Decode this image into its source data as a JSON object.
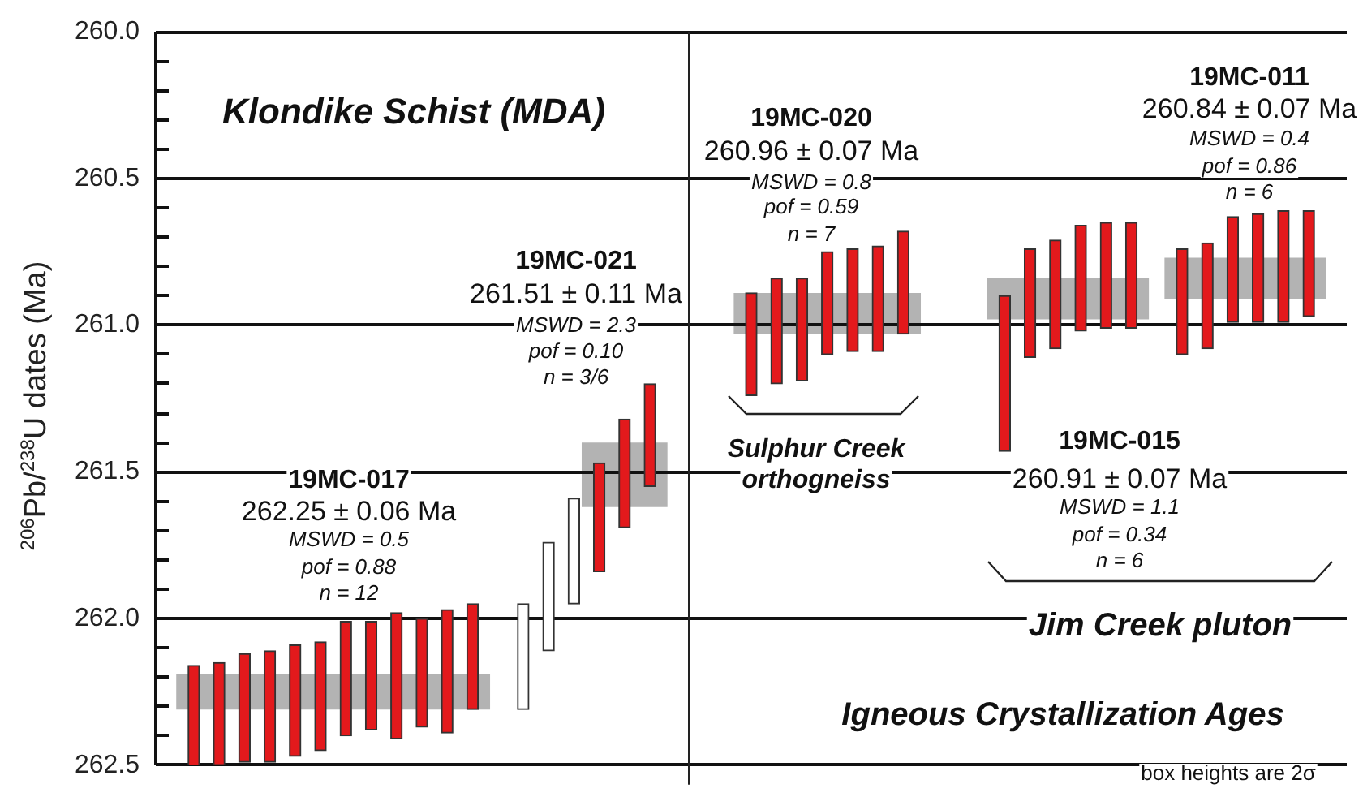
{
  "chart_data": {
    "type": "bar",
    "ylabel": "$^{206}$Pb/$^{238}$U dates (Ma)",
    "categories": [
      null,
      null,
      null,
      null,
      null,
      null,
      null,
      null,
      null,
      null,
      null,
      null,
      null,
      null,
      null,
      null,
      null,
      null,
      null,
      null,
      null,
      null,
      null,
      null,
      null,
      null,
      null,
      null,
      null,
      null,
      null,
      null,
      null,
      null,
      null,
      null,
      null,
      null,
      null,
      null,
      null,
      null,
      null,
      null,
      null,
      null,
      null
    ],
    "series": [
      {
        "type": "bar",
        "color": "#e3191c",
        "base": [
          null,
          262.16,
          262.15,
          262.12,
          262.11,
          262.09,
          262.08,
          262.01,
          262.01,
          261.98,
          262.0,
          261.97,
          261.95,
          null,
          null,
          null,
          null,
          261.47,
          261.32,
          261.2,
          null,
          null,
          null,
          260.89,
          260.84,
          260.84,
          260.75,
          260.74,
          260.73,
          260.68,
          null,
          null,
          null,
          260.9,
          260.74,
          260.71,
          260.66,
          260.65,
          260.65,
          null,
          260.74,
          260.72,
          260.63,
          260.62,
          260.61,
          260.61,
          null
        ],
        "values": [
          null,
          0.38,
          0.35,
          0.37,
          0.38,
          0.38,
          0.37,
          0.39,
          0.37,
          0.43,
          0.37,
          0.42,
          0.36,
          null,
          null,
          null,
          null,
          0.37,
          0.37,
          0.35,
          null,
          null,
          null,
          0.35,
          0.36,
          0.35,
          0.35,
          0.35,
          0.36,
          0.35,
          null,
          null,
          null,
          0.53,
          0.37,
          0.37,
          0.36,
          0.36,
          0.36,
          null,
          0.36,
          0.36,
          0.36,
          0.37,
          0.38,
          0.36,
          null
        ]
      },
      {
        "type": "bar",
        "color": "#ffffff",
        "base": [
          null,
          null,
          null,
          null,
          null,
          null,
          null,
          null,
          null,
          null,
          null,
          null,
          null,
          null,
          261.95,
          261.74,
          261.59,
          null,
          null,
          null,
          null,
          null,
          null,
          null,
          null,
          null,
          null,
          null,
          null,
          null,
          null,
          null,
          null,
          null,
          null,
          null,
          null,
          null,
          null,
          null,
          null,
          null,
          null,
          null,
          null,
          null,
          null
        ],
        "values": [
          null,
          null,
          null,
          null,
          null,
          null,
          null,
          null,
          null,
          null,
          null,
          null,
          null,
          null,
          0.36,
          0.37,
          0.36,
          null,
          null,
          null,
          null,
          null,
          null,
          null,
          null,
          null,
          null,
          null,
          null,
          null,
          null,
          null,
          null,
          null,
          null,
          null,
          null,
          null,
          null,
          null,
          null,
          null,
          null,
          null,
          null,
          null,
          null
        ]
      }
    ],
    "bands": [
      {
        "axis": "y",
        "from": 262.19,
        "to": 262.31,
        "color": "#b3b3b3"
      },
      {
        "axis": "y",
        "from": 261.4,
        "to": 261.62,
        "color": "#b3b3b3"
      },
      {
        "axis": "y",
        "from": 260.89,
        "to": 261.03,
        "color": "#b3b3b3"
      },
      {
        "axis": "y",
        "from": 260.84,
        "to": 260.98,
        "color": "#b3b3b3"
      },
      {
        "axis": "y",
        "from": 260.77,
        "to": 260.91,
        "color": "#b3b3b3"
      }
    ],
    "ylim": [
      262.5,
      260.0
    ],
    "yticks": [
      {
        "value": 260.0,
        "label": "260.0"
      },
      {
        "value": 260.1,
        "label": null
      },
      {
        "value": 260.2,
        "label": null
      },
      {
        "value": 260.3,
        "label": null
      },
      {
        "value": 260.4,
        "label": null
      },
      {
        "value": 260.5,
        "label": "260.5"
      },
      {
        "value": 260.6,
        "label": null
      },
      {
        "value": 260.7,
        "label": null
      },
      {
        "value": 260.8,
        "label": null
      },
      {
        "value": 260.9,
        "label": null
      },
      {
        "value": 261.0,
        "label": "261.0"
      },
      {
        "value": 261.1,
        "label": null
      },
      {
        "value": 261.2,
        "label": null
      },
      {
        "value": 261.3,
        "label": null
      },
      {
        "value": 261.4,
        "label": null
      },
      {
        "value": 261.5,
        "label": "261.5"
      },
      {
        "value": 261.6,
        "label": null
      },
      {
        "value": 261.7,
        "label": null
      },
      {
        "value": 261.8,
        "label": null
      },
      {
        "value": 261.9,
        "label": null
      },
      {
        "value": 262.0,
        "label": "262.0"
      },
      {
        "value": 262.1,
        "label": null
      },
      {
        "value": 262.2,
        "label": null
      },
      {
        "value": 262.3,
        "label": null
      },
      {
        "value": 262.4,
        "label": null
      },
      {
        "value": 262.5,
        "label": "262.5"
      }
    ],
    "tick_labels": "y",
    "grid": "y",
    "annotations": [
      "Klondike Schist (MDA)",
      "19MC-021",
      "261.51 ± 0.11 Ma",
      "MSWD = 2.3",
      "pof = 0.10",
      "n = 3/6",
      "19MC-017",
      "262.25 ± 0.06 Ma",
      "MSWD = 0.5",
      "pof = 0.88",
      "n = 12",
      "19MC-020",
      "260.96 ± 0.07 Ma",
      "MSWD = 0.8",
      "pof = 0.59",
      "n = 7",
      "19MC-011",
      "260.84 ± 0.07 Ma",
      "MSWD = 0.4",
      "pof = 0.86",
      "n = 6",
      "Sulphur Creek",
      "orthogneiss",
      "19MC-015",
      "260.91 ± 0.07 Ma",
      "MSWD = 1.1",
      "pof = 0.34",
      "n = 6",
      "Jim Creek pluton",
      "Igneous Crystallization Ages",
      "box heights are 2σ"
    ]
  }
}
